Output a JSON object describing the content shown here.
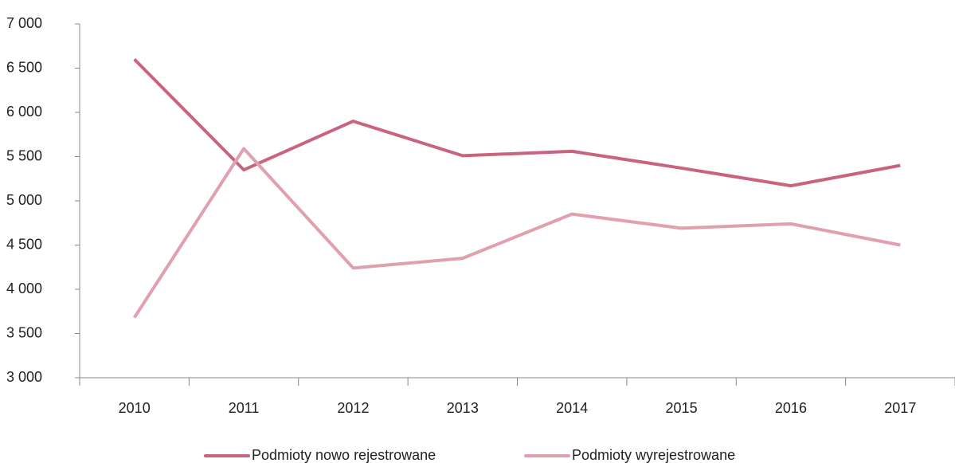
{
  "chart_data": {
    "type": "line",
    "categories": [
      "2010",
      "2011",
      "2012",
      "2013",
      "2014",
      "2015",
      "2016",
      "2017"
    ],
    "series": [
      {
        "name": "Podmioty nowo rejestrowane",
        "color": "#c9637e",
        "values": [
          6600,
          5350,
          5900,
          5510,
          5560,
          5370,
          5170,
          5400
        ]
      },
      {
        "name": "Podmioty wyrejestrowane",
        "color": "#e0a0ae",
        "values": [
          3680,
          5590,
          4240,
          4350,
          4850,
          4690,
          4740,
          4500
        ]
      }
    ],
    "ylim": [
      3000,
      7000
    ],
    "yticks": [
      {
        "value": 3000,
        "label": "3 000"
      },
      {
        "value": 3500,
        "label": "3 500"
      },
      {
        "value": 4000,
        "label": "4 000"
      },
      {
        "value": 4500,
        "label": "4 500"
      },
      {
        "value": 5000,
        "label": "5 000"
      },
      {
        "value": 5500,
        "label": "5 500"
      },
      {
        "value": 6000,
        "label": "6 000"
      },
      {
        "value": 6500,
        "label": "6 500"
      },
      {
        "value": 7000,
        "label": "7 000"
      }
    ],
    "legend": "bottom"
  }
}
